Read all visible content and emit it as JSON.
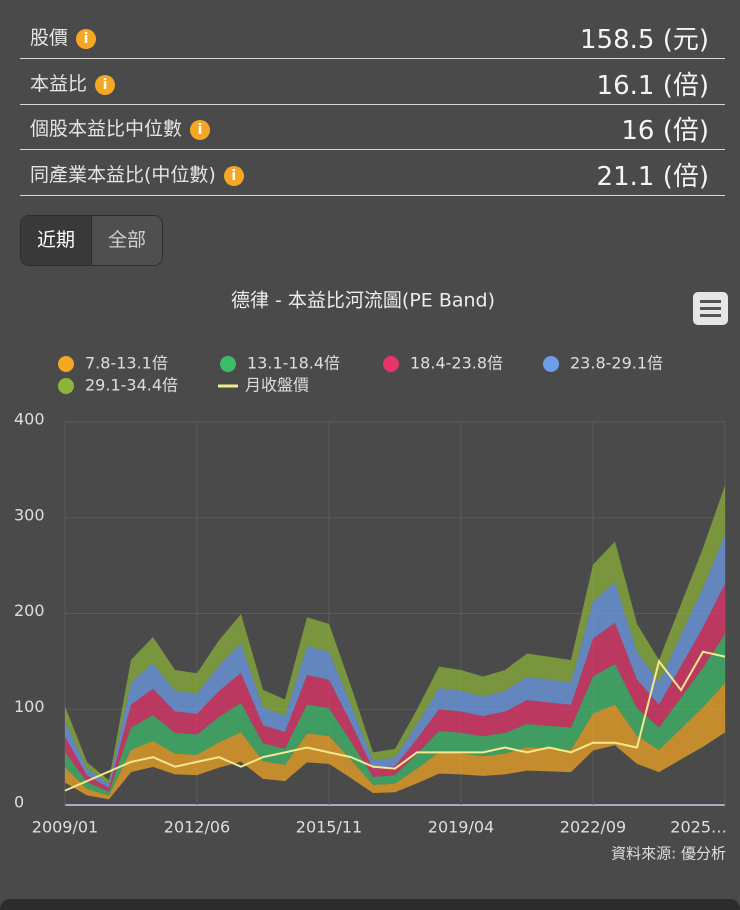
{
  "info": {
    "rows": [
      {
        "label": "股價",
        "value": "158.5 (元)"
      },
      {
        "label": "本益比",
        "value": "16.1 (倍)"
      },
      {
        "label": "個股本益比中位數",
        "value": "16 (倍)"
      },
      {
        "label": "同產業本益比(中位數)",
        "value": "21.1 (倍)"
      }
    ]
  },
  "tabs": {
    "items": [
      "近期",
      "全部"
    ],
    "active": 0
  },
  "chart_data": {
    "type": "pe-band",
    "title": "德律 - 本益比河流圖(PE Band)",
    "caption": "資料來源: 優分析",
    "categories": [
      "2009/01",
      null,
      null,
      null,
      null,
      null,
      "2012/06",
      null,
      null,
      null,
      null,
      null,
      "2015/11",
      null,
      null,
      null,
      null,
      null,
      "2019/04",
      null,
      null,
      null,
      null,
      null,
      "2022/09",
      null,
      null,
      null,
      null,
      null,
      "2025…"
    ],
    "ylim": [
      0,
      400
    ],
    "yticks": [
      0,
      100,
      200,
      300,
      400
    ],
    "grid": true,
    "series": [
      {
        "name": "7.8-13.1倍",
        "color": "#f5a623",
        "low": [
          23.4,
          10.1,
          5.9,
          34.3,
          39.8,
          32.0,
          31.2,
          39.0,
          45.2,
          27.3,
          25.0,
          44.5,
          42.9,
          28.1,
          12.5,
          13.3,
          22.6,
          32.8,
          32.0,
          30.4,
          32.0,
          35.9,
          35.1,
          34.3,
          56.9,
          62.4,
          42.9,
          34.3,
          47.6,
          60.8,
          75.7
        ],
        "high": [
          39.3,
          17.0,
          9.8,
          57.6,
          66.8,
          53.7,
          52.4,
          65.5,
          76.0,
          45.9,
          41.9,
          74.7,
          72.1,
          47.2,
          21.0,
          22.3,
          38.0,
          55.0,
          53.7,
          51.1,
          53.7,
          60.3,
          59.0,
          57.6,
          95.6,
          104.8,
          72.1,
          57.6,
          79.9,
          102.2,
          127.1
        ]
      },
      {
        "name": "13.1-18.4倍",
        "color": "#3dbd6b",
        "low": [
          39.3,
          17.0,
          9.8,
          57.6,
          66.8,
          53.7,
          52.4,
          65.5,
          76.0,
          45.9,
          41.9,
          74.7,
          72.1,
          47.2,
          21.0,
          22.3,
          38.0,
          55.0,
          53.7,
          51.1,
          53.7,
          60.3,
          59.0,
          57.6,
          95.6,
          104.8,
          72.1,
          57.6,
          79.9,
          102.2,
          127.1
        ],
        "high": [
          55.2,
          23.9,
          13.8,
          81.0,
          93.8,
          75.4,
          73.6,
          92.0,
          106.7,
          64.4,
          58.9,
          104.9,
          101.2,
          66.2,
          29.4,
          31.3,
          53.4,
          77.3,
          75.4,
          71.8,
          75.4,
          84.6,
          82.8,
          81.0,
          134.3,
          147.2,
          101.2,
          81.0,
          112.2,
          143.5,
          178.5
        ]
      },
      {
        "name": "18.4-23.8倍",
        "color": "#e8336b",
        "low": [
          55.2,
          23.9,
          13.8,
          81.0,
          93.8,
          75.4,
          73.6,
          92.0,
          106.7,
          64.4,
          58.9,
          104.9,
          101.2,
          66.2,
          29.4,
          31.3,
          53.4,
          77.3,
          75.4,
          71.8,
          75.4,
          84.6,
          82.8,
          81.0,
          134.3,
          147.2,
          101.2,
          81.0,
          112.2,
          143.5,
          178.5
        ],
        "high": [
          71.4,
          30.9,
          17.9,
          104.7,
          121.4,
          97.6,
          95.2,
          119.0,
          138.0,
          83.3,
          76.2,
          135.7,
          130.9,
          85.7,
          38.1,
          40.5,
          69.0,
          100.0,
          97.6,
          92.8,
          97.6,
          109.5,
          107.1,
          104.7,
          173.7,
          190.4,
          130.9,
          104.7,
          145.2,
          185.6,
          230.9
        ]
      },
      {
        "name": "23.8-29.1倍",
        "color": "#6d9eeb",
        "low": [
          71.4,
          30.9,
          17.9,
          104.7,
          121.4,
          97.6,
          95.2,
          119.0,
          138.0,
          83.3,
          76.2,
          135.7,
          130.9,
          85.7,
          38.1,
          40.5,
          69.0,
          100.0,
          97.6,
          92.8,
          97.6,
          109.5,
          107.1,
          104.7,
          173.7,
          190.4,
          130.9,
          104.7,
          145.2,
          185.6,
          230.9
        ],
        "high": [
          87.3,
          37.8,
          21.8,
          128.0,
          148.4,
          119.3,
          116.4,
          145.5,
          168.8,
          101.9,
          93.1,
          165.9,
          160.1,
          104.8,
          46.6,
          49.5,
          84.4,
          122.2,
          119.3,
          113.5,
          119.3,
          133.9,
          131.0,
          128.0,
          212.4,
          232.8,
          160.1,
          128.0,
          177.5,
          227.0,
          282.3
        ]
      },
      {
        "name": "29.1-34.4倍",
        "color": "#8cb43a",
        "low": [
          87.3,
          37.8,
          21.8,
          128.0,
          148.4,
          119.3,
          116.4,
          145.5,
          168.8,
          101.9,
          93.1,
          165.9,
          160.1,
          104.8,
          46.6,
          49.5,
          84.4,
          122.2,
          119.3,
          113.5,
          119.3,
          133.9,
          131.0,
          128.0,
          212.4,
          232.8,
          160.1,
          128.0,
          177.5,
          227.0,
          282.3
        ],
        "high": [
          103.2,
          44.7,
          25.8,
          151.4,
          175.4,
          141.0,
          137.6,
          172.0,
          199.5,
          120.4,
          110.1,
          196.1,
          189.2,
          123.8,
          55.0,
          58.5,
          99.8,
          144.5,
          141.0,
          134.2,
          141.0,
          158.2,
          154.8,
          151.4,
          251.1,
          275.2,
          189.2,
          151.4,
          209.8,
          268.3,
          333.7
        ]
      },
      {
        "name": "月收盤價",
        "color": "#f3e98f",
        "values": [
          15,
          25,
          35,
          45,
          50,
          40,
          45,
          50,
          40,
          50,
          55,
          60,
          55,
          50,
          40,
          38,
          55,
          55,
          55,
          55,
          60,
          55,
          60,
          55,
          65,
          65,
          60,
          150,
          120,
          160,
          155
        ]
      }
    ]
  }
}
